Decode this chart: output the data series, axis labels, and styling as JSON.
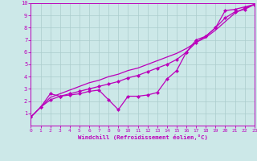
{
  "xlabel": "Windchill (Refroidissement éolien,°C)",
  "xlim": [
    0,
    23
  ],
  "ylim": [
    0,
    10
  ],
  "xticks": [
    0,
    1,
    2,
    3,
    4,
    5,
    6,
    7,
    8,
    9,
    10,
    11,
    12,
    13,
    14,
    15,
    16,
    17,
    18,
    19,
    20,
    21,
    22,
    23
  ],
  "yticks": [
    1,
    2,
    3,
    4,
    5,
    6,
    7,
    8,
    9,
    10
  ],
  "bg_color": "#cce8e8",
  "grid_color": "#aacccc",
  "line_color": "#bb00bb",
  "line1_x": [
    0,
    1,
    2,
    3,
    4,
    5,
    6,
    7,
    8,
    9,
    10,
    11,
    12,
    13,
    14,
    15,
    16,
    17,
    18,
    19,
    20,
    21,
    22,
    23
  ],
  "line1_y": [
    0.7,
    1.5,
    2.6,
    2.4,
    2.5,
    2.6,
    2.8,
    2.9,
    2.1,
    1.3,
    2.4,
    2.4,
    2.5,
    2.7,
    3.8,
    4.5,
    6.0,
    7.0,
    7.3,
    8.0,
    9.4,
    9.5,
    9.7,
    9.9
  ],
  "line2_x": [
    0,
    1,
    2,
    3,
    4,
    5,
    6,
    7,
    8,
    9,
    10,
    11,
    12,
    13,
    14,
    15,
    16,
    17,
    18,
    19,
    20,
    21,
    22,
    23
  ],
  "line2_y": [
    0.7,
    1.5,
    2.1,
    2.4,
    2.6,
    2.8,
    3.0,
    3.2,
    3.4,
    3.6,
    3.9,
    4.1,
    4.4,
    4.7,
    5.0,
    5.4,
    6.0,
    6.8,
    7.3,
    8.0,
    8.8,
    9.3,
    9.5,
    9.9
  ],
  "line3_x": [
    0,
    1,
    2,
    3,
    4,
    5,
    6,
    7,
    8,
    9,
    10,
    11,
    12,
    13,
    14,
    15,
    16,
    17,
    18,
    19,
    20,
    21,
    22,
    23
  ],
  "line3_y": [
    0.7,
    1.5,
    2.3,
    2.6,
    2.9,
    3.2,
    3.5,
    3.7,
    4.0,
    4.2,
    4.5,
    4.7,
    5.0,
    5.3,
    5.6,
    5.9,
    6.3,
    6.8,
    7.2,
    7.8,
    8.5,
    9.2,
    9.6,
    9.9
  ],
  "line1_marker": "D",
  "line2_marker": "D",
  "line3_marker": null,
  "marker_size": 2.5,
  "linewidth": 0.9
}
